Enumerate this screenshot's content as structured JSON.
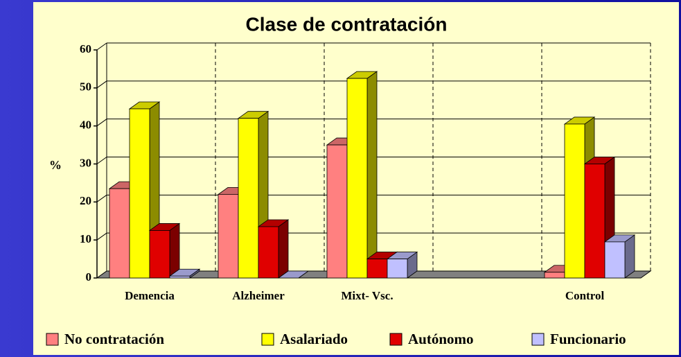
{
  "chart_data": {
    "type": "bar3d",
    "title": "Clase de contratación",
    "y_label": "%",
    "categories": [
      "Demencia",
      "Alzheimer",
      "Mixt- Vsc.",
      null,
      "Control"
    ],
    "series": [
      {
        "name": "No contratación",
        "color": "#ff8080",
        "values": [
          23.5,
          22,
          35,
          null,
          1.5
        ]
      },
      {
        "name": "Asalariado",
        "color": "#ffff00",
        "values": [
          44.5,
          42,
          52.5,
          null,
          40.5
        ]
      },
      {
        "name": "Autónomo",
        "color": "#e00000",
        "values": [
          12.5,
          13.5,
          5,
          null,
          30
        ]
      },
      {
        "name": "Funcionario",
        "color": "#c0c0ff",
        "values": [
          0.5,
          0,
          5,
          null,
          9.5
        ]
      }
    ],
    "ylim": [
      0,
      60
    ],
    "yticks": [
      0,
      10,
      20,
      30,
      40,
      50,
      60
    ],
    "grid": true
  }
}
